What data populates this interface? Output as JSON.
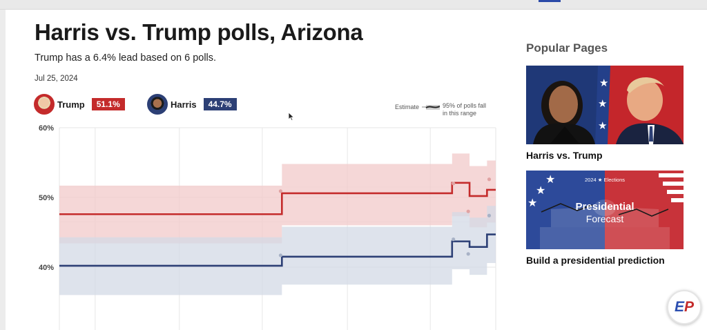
{
  "header": {
    "title": "Harris vs. Trump polls, Arizona",
    "subtitle": "Trump has a 6.4% lead based on 6 polls.",
    "date": "Jul 25, 2024"
  },
  "candidates": [
    {
      "name": "Trump",
      "value": "51.1%",
      "color": "#c42b2b"
    },
    {
      "name": "Harris",
      "value": "44.7%",
      "color": "#2c3f75"
    }
  ],
  "legend": {
    "estimate_label": "Estimate",
    "range_line1": "95% of polls fall",
    "range_line2": "in this range"
  },
  "chart_data": {
    "type": "line",
    "ylim": [
      33,
      60
    ],
    "yticks": [
      {
        "value": 60,
        "label": "60%"
      },
      {
        "value": 50,
        "label": "50%"
      },
      {
        "value": 40,
        "label": "40%"
      }
    ],
    "grid": true,
    "series": [
      {
        "name": "Trump",
        "color": "#c42b2b",
        "band_color": "#f2caca",
        "points": [
          [
            0,
            47.6
          ],
          [
            0.51,
            47.6
          ],
          [
            0.51,
            50.6
          ],
          [
            0.9,
            50.6
          ],
          [
            0.9,
            52.1
          ],
          [
            0.94,
            52.1
          ],
          [
            0.94,
            50.2
          ],
          [
            0.98,
            50.2
          ],
          [
            0.98,
            51.1
          ],
          [
            1,
            51.1
          ]
        ],
        "band": [
          [
            0,
            51.7,
            43.4
          ],
          [
            0.51,
            51.7,
            43.4
          ],
          [
            0.51,
            54.8,
            46.0
          ],
          [
            0.9,
            54.8,
            46.0
          ],
          [
            0.9,
            56.3,
            47.3
          ],
          [
            0.94,
            56.3,
            47.3
          ],
          [
            0.94,
            54.5,
            45.7
          ],
          [
            0.98,
            54.5,
            45.7
          ],
          [
            0.98,
            55.3,
            46.4
          ],
          [
            1,
            55.3,
            46.4
          ]
        ]
      },
      {
        "name": "Harris",
        "color": "#2c3f75",
        "band_color": "#d3dae5",
        "points": [
          [
            0,
            40.2
          ],
          [
            0.51,
            40.2
          ],
          [
            0.51,
            41.5
          ],
          [
            0.9,
            41.5
          ],
          [
            0.9,
            43.7
          ],
          [
            0.94,
            43.7
          ],
          [
            0.94,
            42.9
          ],
          [
            0.98,
            42.9
          ],
          [
            0.98,
            44.7
          ],
          [
            1,
            44.7
          ]
        ],
        "band": [
          [
            0,
            44.3,
            36.0
          ],
          [
            0.51,
            44.3,
            36.0
          ],
          [
            0.51,
            45.8,
            37.5
          ],
          [
            0.9,
            45.8,
            37.5
          ],
          [
            0.9,
            47.9,
            39.7
          ],
          [
            0.94,
            47.9,
            39.7
          ],
          [
            0.94,
            47.1,
            38.9
          ],
          [
            0.98,
            47.1,
            38.9
          ],
          [
            0.98,
            48.8,
            40.6
          ],
          [
            1,
            48.8,
            40.6
          ]
        ]
      }
    ],
    "polls": [
      {
        "x": 0.507,
        "y": 50.9,
        "series": "Trump"
      },
      {
        "x": 0.507,
        "y": 41.7,
        "series": "Harris"
      },
      {
        "x": 0.903,
        "y": 52.0,
        "series": "Trump"
      },
      {
        "x": 0.903,
        "y": 44.0,
        "series": "Harris"
      },
      {
        "x": 0.937,
        "y": 48.0,
        "series": "Trump"
      },
      {
        "x": 0.937,
        "y": 41.9,
        "series": "Harris"
      },
      {
        "x": 0.985,
        "y": 52.6,
        "series": "Trump"
      },
      {
        "x": 0.985,
        "y": 47.4,
        "series": "Harris"
      }
    ]
  },
  "sidebar": {
    "heading": "Popular Pages",
    "cards": [
      {
        "title": "Harris vs. Trump"
      },
      {
        "title": "Build a presidential prediction",
        "image_kicker": "2024 ★ Elections",
        "image_title": "Presidential",
        "image_subtitle": "Forecast"
      }
    ]
  },
  "brand": {
    "logo_e": "E",
    "logo_p": "P"
  }
}
